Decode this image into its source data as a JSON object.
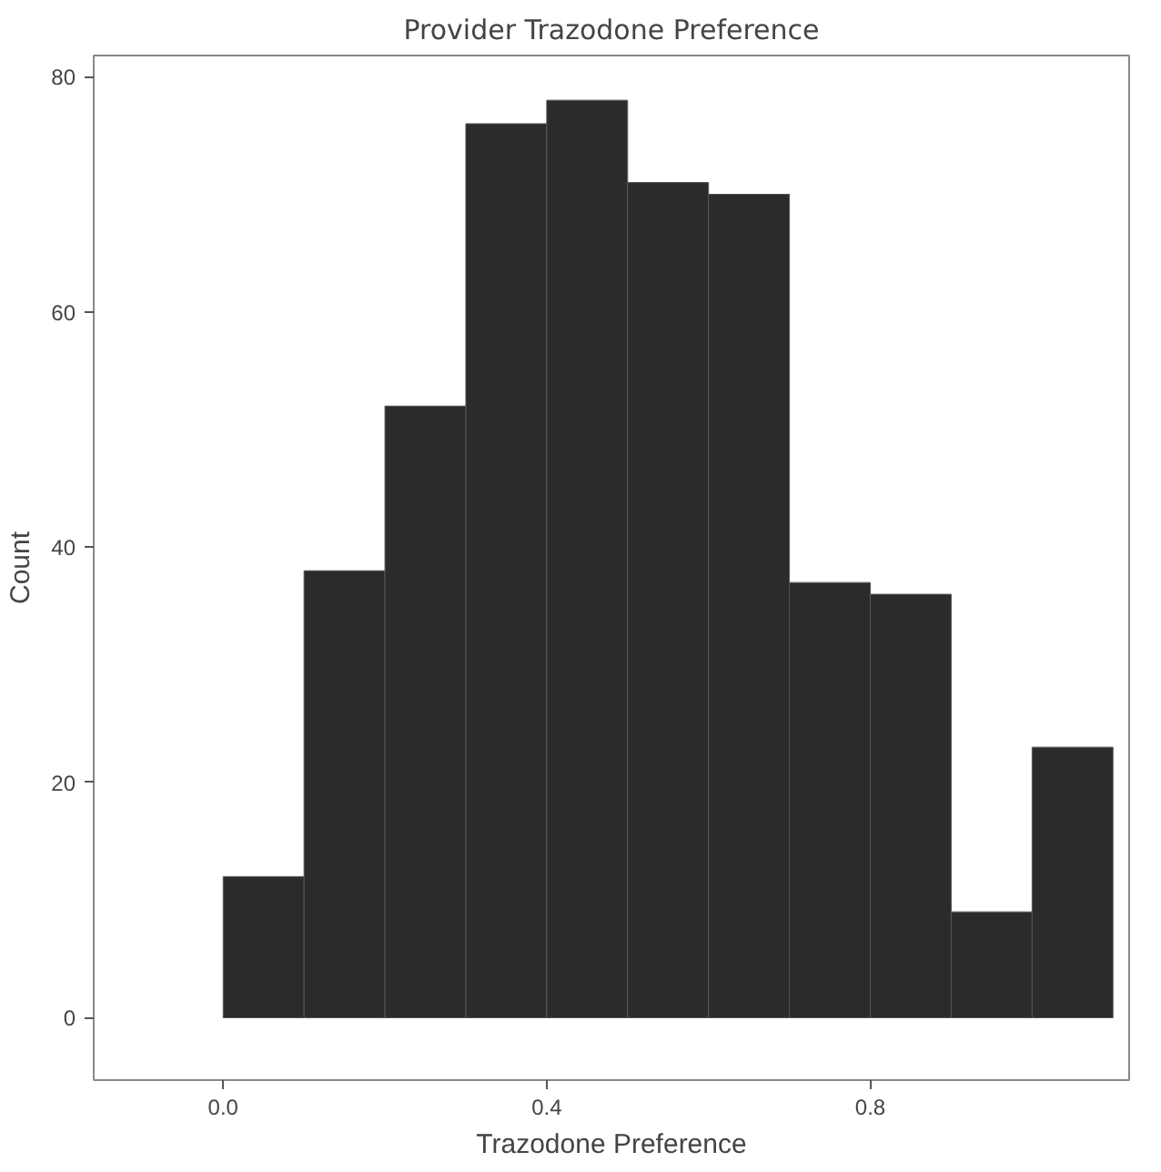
{
  "chart_data": {
    "type": "histogram",
    "title": "Provider Trazodone Preference",
    "xlabel": "Trazodone Preference",
    "ylabel": "Count",
    "bins": [
      0.0,
      0.1,
      0.2,
      0.3,
      0.4,
      0.5,
      0.6,
      0.7,
      0.8,
      0.9,
      1.0,
      1.1
    ],
    "values": [
      12,
      38,
      52,
      76,
      78,
      71,
      70,
      37,
      36,
      9,
      23
    ],
    "color": "#2b2b2b",
    "xlim": [
      -0.16,
      1.12
    ],
    "ylim": [
      -5.3,
      81.8
    ],
    "xticks": [
      {
        "value": 0.0,
        "label": "0.0"
      },
      {
        "value": 0.4,
        "label": "0.4"
      },
      {
        "value": 0.8,
        "label": "0.8"
      }
    ],
    "yticks": [
      0,
      20,
      40,
      60,
      80
    ],
    "grid": false
  }
}
